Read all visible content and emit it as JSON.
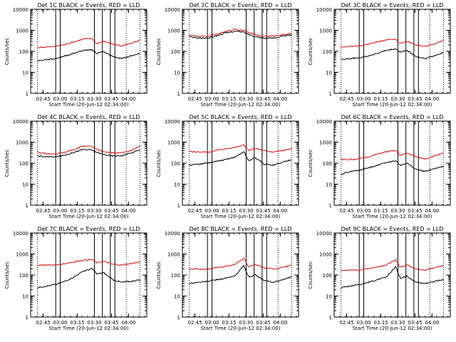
{
  "colors": {
    "events": "#000000",
    "lld": "#dd1111",
    "frame": "#000000",
    "background": "#ffffff"
  },
  "chart_data": [
    {
      "type": "line",
      "title": "Det 1C BLACK = Events, RED = LLD",
      "xlabel": "Start Time (20-Jun-12 02:34:00)",
      "ylabel": "Counts/sec",
      "xlim": [
        "02:34",
        "04:16"
      ],
      "ylim": [
        1,
        10000
      ],
      "yscale": "log",
      "xticks": [
        "02:45",
        "03:00",
        "03:15",
        "03:30",
        "03:45",
        "04:00"
      ],
      "yticks": [
        "1",
        "10",
        "100",
        "1000",
        "10000"
      ],
      "dotted_vlines": [
        "02:40",
        "03:58",
        "04:10"
      ],
      "solid_vlines": [
        "02:56",
        "03:00",
        "03:30",
        "03:37",
        "03:44",
        "03:48"
      ],
      "x": [
        "02:40",
        "02:48",
        "02:56",
        "03:04",
        "03:12",
        "03:20",
        "03:28",
        "03:32",
        "03:38",
        "03:46",
        "03:54",
        "04:02",
        "04:10"
      ],
      "series": [
        {
          "name": "Events",
          "values": [
            35,
            40,
            45,
            60,
            80,
            110,
            120,
            80,
            100,
            55,
            45,
            60,
            80
          ]
        },
        {
          "name": "LLD",
          "values": [
            150,
            160,
            170,
            210,
            280,
            380,
            400,
            230,
            300,
            220,
            180,
            240,
            320
          ]
        }
      ]
    },
    {
      "type": "line",
      "title": "Det 2C BLACK = Events, RED = LLD",
      "xlabel": "Start Time (20-Jun-12 02:34:00)",
      "ylabel": "Counts/sec",
      "xlim": [
        "02:34",
        "04:16"
      ],
      "ylim": [
        1,
        10000
      ],
      "yscale": "log",
      "xticks": [
        "02:45",
        "03:00",
        "03:15",
        "03:30",
        "03:45",
        "04:00"
      ],
      "yticks": [
        "1",
        "10",
        "100",
        "1000",
        "10000"
      ],
      "dotted_vlines": [
        "02:40",
        "03:58",
        "04:10"
      ],
      "solid_vlines": [
        "02:56",
        "03:00",
        "03:30",
        "03:37",
        "03:44",
        "03:48"
      ],
      "x": [
        "02:40",
        "02:48",
        "02:56",
        "03:04",
        "03:12",
        "03:20",
        "03:28",
        "03:32",
        "03:38",
        "03:46",
        "03:54",
        "04:02",
        "04:10"
      ],
      "series": [
        {
          "name": "Events",
          "values": [
            500,
            430,
            420,
            550,
            750,
            900,
            820,
            650,
            500,
            420,
            430,
            520,
            600
          ]
        },
        {
          "name": "LLD",
          "values": [
            600,
            520,
            500,
            650,
            900,
            1100,
            1000,
            800,
            620,
            520,
            530,
            620,
            700
          ]
        }
      ]
    },
    {
      "type": "line",
      "title": "Det 3C BLACK = Events, RED = LLD",
      "xlabel": "Start Time (20-Jun-12 02:34:00)",
      "ylabel": "Counts/sec",
      "xlim": [
        "02:34",
        "04:16"
      ],
      "ylim": [
        1,
        10000
      ],
      "yscale": "log",
      "xticks": [
        "02:45",
        "03:00",
        "03:15",
        "03:30",
        "03:45",
        "04:00"
      ],
      "yticks": [
        "1",
        "10",
        "100",
        "1000",
        "10000"
      ],
      "dotted_vlines": [
        "02:40",
        "03:58",
        "04:10"
      ],
      "solid_vlines": [
        "02:56",
        "03:00",
        "03:30",
        "03:37",
        "03:44",
        "03:48"
      ],
      "x": [
        "02:40",
        "02:48",
        "02:56",
        "03:04",
        "03:12",
        "03:20",
        "03:28",
        "03:32",
        "03:38",
        "03:46",
        "03:54",
        "04:02",
        "04:10"
      ],
      "series": [
        {
          "name": "Events",
          "values": [
            40,
            45,
            50,
            60,
            80,
            110,
            130,
            90,
            110,
            55,
            45,
            60,
            90
          ]
        },
        {
          "name": "LLD",
          "values": [
            160,
            170,
            180,
            220,
            280,
            360,
            380,
            240,
            300,
            200,
            170,
            220,
            330
          ]
        }
      ]
    },
    {
      "type": "line",
      "title": "Det 4C BLACK = Events, RED = LLD",
      "xlabel": "Start Time (20-Jun-12 02:34:00)",
      "ylabel": "Counts/sec",
      "xlim": [
        "02:34",
        "04:16"
      ],
      "ylim": [
        1,
        10000
      ],
      "yscale": "log",
      "xticks": [
        "02:45",
        "03:00",
        "03:15",
        "03:30",
        "03:45",
        "04:00"
      ],
      "yticks": [
        "1",
        "10",
        "100",
        "1000",
        "10000"
      ],
      "dotted_vlines": [
        "02:40",
        "03:58",
        "04:10"
      ],
      "solid_vlines": [
        "02:56",
        "03:00",
        "03:30",
        "03:37",
        "03:44",
        "03:48"
      ],
      "x": [
        "02:40",
        "02:48",
        "02:56",
        "03:04",
        "03:12",
        "03:20",
        "03:28",
        "03:32",
        "03:38",
        "03:46",
        "03:54",
        "04:02",
        "04:10"
      ],
      "series": [
        {
          "name": "Events",
          "values": [
            220,
            200,
            200,
            240,
            330,
            450,
            420,
            330,
            260,
            220,
            230,
            300,
            450
          ]
        },
        {
          "name": "LLD",
          "values": [
            330,
            280,
            270,
            330,
            450,
            650,
            600,
            450,
            360,
            300,
            310,
            400,
            650
          ]
        }
      ]
    },
    {
      "type": "line",
      "title": "Det 5C BLACK = Events, RED = LLD",
      "xlabel": "Start Time (20-Jun-12 02:34:00)",
      "ylabel": "Counts/sec",
      "xlim": [
        "02:34",
        "04:16"
      ],
      "ylim": [
        1,
        10000
      ],
      "yscale": "log",
      "xticks": [
        "02:45",
        "03:00",
        "03:15",
        "03:30",
        "03:45",
        "04:00"
      ],
      "yticks": [
        "1",
        "10",
        "100",
        "1000",
        "10000"
      ],
      "dotted_vlines": [
        "02:40",
        "03:58",
        "04:10"
      ],
      "solid_vlines": [
        "02:56",
        "03:00",
        "03:30",
        "03:37",
        "03:44",
        "03:48"
      ],
      "x": [
        "02:40",
        "02:48",
        "02:56",
        "03:04",
        "03:12",
        "03:20",
        "03:28",
        "03:32",
        "03:38",
        "03:46",
        "03:54",
        "04:02",
        "04:10"
      ],
      "series": [
        {
          "name": "Events",
          "values": [
            80,
            90,
            100,
            120,
            150,
            190,
            350,
            130,
            180,
            90,
            80,
            110,
            150
          ]
        },
        {
          "name": "LLD",
          "values": [
            350,
            340,
            330,
            400,
            480,
            560,
            750,
            400,
            500,
            380,
            340,
            400,
            500
          ]
        }
      ]
    },
    {
      "type": "line",
      "title": "Det 6C BLACK = Events, RED = LLD",
      "xlabel": "Start Time (20-Jun-12 02:34:00)",
      "ylabel": "Counts/sec",
      "xlim": [
        "02:34",
        "04:16"
      ],
      "ylim": [
        1,
        10000
      ],
      "yscale": "log",
      "xticks": [
        "02:45",
        "03:00",
        "03:15",
        "03:30",
        "03:45",
        "04:00"
      ],
      "yticks": [
        "1",
        "10",
        "100",
        "1000",
        "10000"
      ],
      "dotted_vlines": [
        "02:40",
        "03:58",
        "04:10"
      ],
      "solid_vlines": [
        "02:56",
        "03:00",
        "03:30",
        "03:37",
        "03:44",
        "03:48"
      ],
      "x": [
        "02:40",
        "02:48",
        "02:56",
        "03:04",
        "03:12",
        "03:20",
        "03:28",
        "03:32",
        "03:38",
        "03:46",
        "03:54",
        "04:02",
        "04:10"
      ],
      "series": [
        {
          "name": "Events",
          "values": [
            30,
            40,
            45,
            60,
            80,
            110,
            130,
            80,
            100,
            50,
            40,
            55,
            70
          ]
        },
        {
          "name": "LLD",
          "values": [
            150,
            150,
            160,
            200,
            270,
            350,
            400,
            230,
            300,
            200,
            160,
            220,
            300
          ]
        }
      ]
    },
    {
      "type": "line",
      "title": "Det 7C BLACK = Events, RED = LLD",
      "xlabel": "Start Time (20-Jun-12 02:34:00)",
      "ylabel": "Counts/sec",
      "xlim": [
        "02:34",
        "04:16"
      ],
      "ylim": [
        1,
        10000
      ],
      "yscale": "log",
      "xticks": [
        "02:45",
        "03:00",
        "03:15",
        "03:30",
        "03:45",
        "04:00"
      ],
      "yticks": [
        "1",
        "10",
        "100",
        "1000",
        "10000"
      ],
      "dotted_vlines": [
        "02:40",
        "03:58",
        "04:10"
      ],
      "solid_vlines": [
        "02:56",
        "03:00",
        "03:30",
        "03:37",
        "03:44",
        "03:48"
      ],
      "x": [
        "02:40",
        "02:48",
        "02:56",
        "03:04",
        "03:12",
        "03:20",
        "03:28",
        "03:32",
        "03:38",
        "03:46",
        "03:54",
        "04:02",
        "04:10"
      ],
      "series": [
        {
          "name": "Events",
          "values": [
            25,
            30,
            35,
            50,
            80,
            150,
            200,
            110,
            130,
            60,
            45,
            50,
            60
          ]
        },
        {
          "name": "LLD",
          "values": [
            300,
            300,
            300,
            350,
            420,
            500,
            550,
            380,
            450,
            320,
            300,
            350,
            420
          ]
        }
      ]
    },
    {
      "type": "line",
      "title": "Det 8C BLACK = Events, RED = LLD",
      "xlabel": "Start Time (20-Jun-12 02:34:00)",
      "ylabel": "Counts/sec",
      "xlim": [
        "02:34",
        "04:16"
      ],
      "ylim": [
        1,
        10000
      ],
      "yscale": "log",
      "xticks": [
        "02:45",
        "03:00",
        "03:15",
        "03:30",
        "03:45",
        "04:00"
      ],
      "yticks": [
        "1",
        "10",
        "100",
        "1000",
        "10000"
      ],
      "dotted_vlines": [
        "02:40",
        "03:58",
        "04:10"
      ],
      "solid_vlines": [
        "02:56",
        "03:00",
        "03:30",
        "03:37",
        "03:44",
        "03:48"
      ],
      "x": [
        "02:40",
        "02:48",
        "02:56",
        "03:04",
        "03:12",
        "03:20",
        "03:28",
        "03:32",
        "03:38",
        "03:46",
        "03:54",
        "04:02",
        "04:10"
      ],
      "series": [
        {
          "name": "Events",
          "values": [
            40,
            45,
            50,
            60,
            70,
            90,
            280,
            80,
            100,
            55,
            45,
            60,
            80
          ]
        },
        {
          "name": "LLD",
          "values": [
            200,
            190,
            190,
            220,
            260,
            320,
            650,
            250,
            320,
            220,
            190,
            230,
            300
          ]
        }
      ]
    },
    {
      "type": "line",
      "title": "Det 9C BLACK = Events, RED = LLD",
      "xlabel": "Start Time (20-Jun-12 02:34:00)",
      "ylabel": "Counts/sec",
      "xlim": [
        "02:34",
        "04:16"
      ],
      "ylim": [
        1,
        10000
      ],
      "yscale": "log",
      "xticks": [
        "02:45",
        "03:00",
        "03:15",
        "03:30",
        "03:45",
        "04:00"
      ],
      "yticks": [
        "1",
        "10",
        "100",
        "1000",
        "10000"
      ],
      "dotted_vlines": [
        "02:40",
        "03:58",
        "04:10"
      ],
      "solid_vlines": [
        "02:56",
        "03:00",
        "03:30",
        "03:37",
        "03:44",
        "03:48"
      ],
      "x": [
        "02:40",
        "02:48",
        "02:56",
        "03:04",
        "03:12",
        "03:20",
        "03:28",
        "03:32",
        "03:38",
        "03:46",
        "03:54",
        "04:02",
        "04:10"
      ],
      "series": [
        {
          "name": "Events",
          "values": [
            25,
            30,
            35,
            45,
            60,
            80,
            250,
            70,
            90,
            45,
            40,
            50,
            60
          ]
        },
        {
          "name": "LLD",
          "values": [
            170,
            170,
            170,
            200,
            240,
            300,
            550,
            230,
            300,
            200,
            170,
            220,
            280
          ]
        }
      ]
    }
  ]
}
